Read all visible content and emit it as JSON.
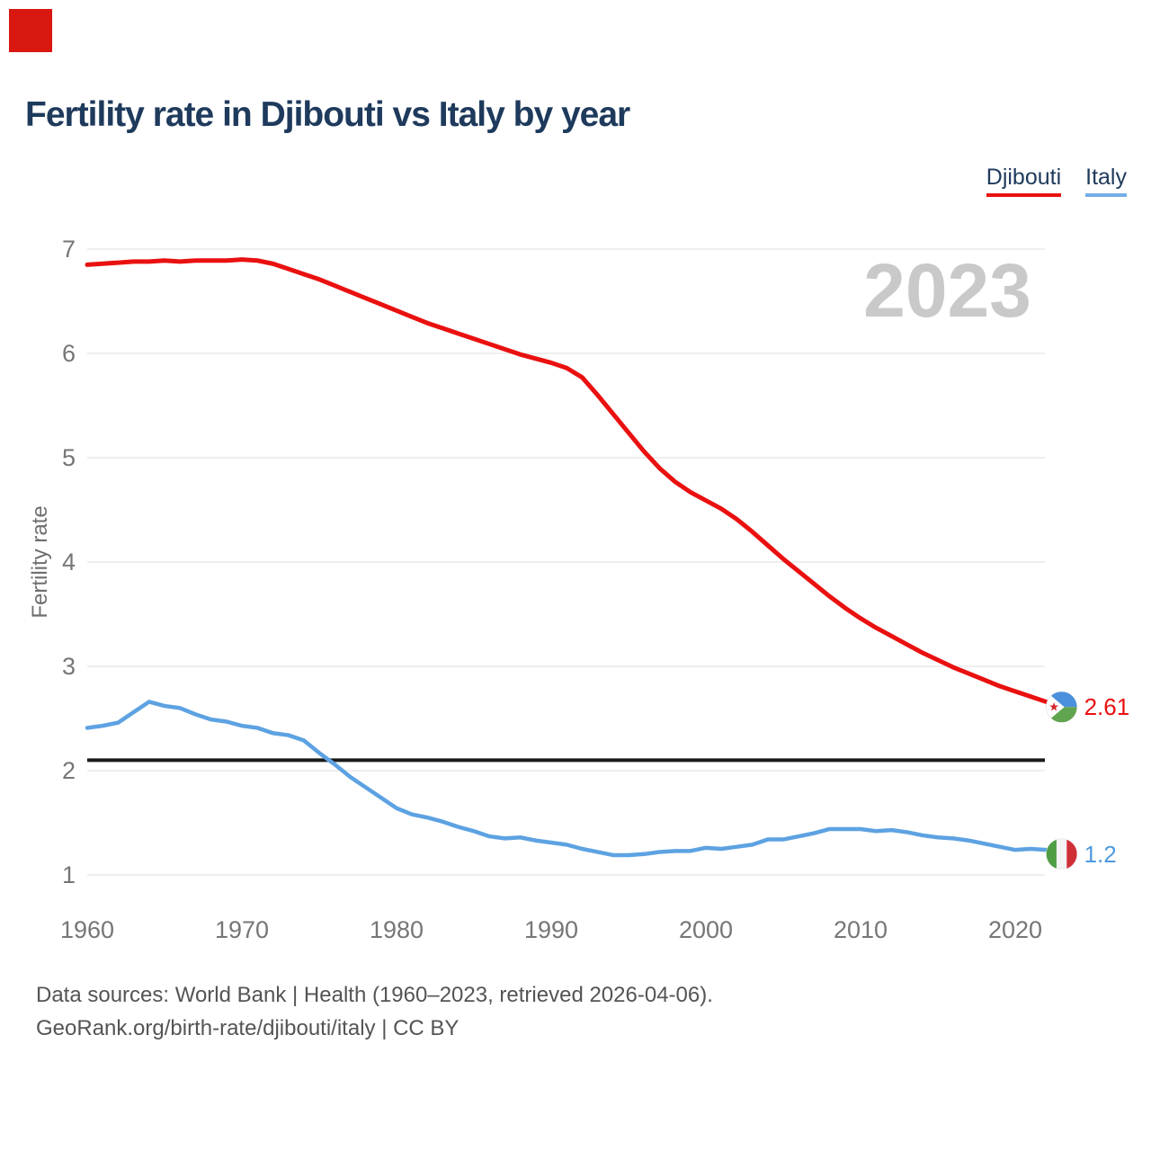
{
  "corner_marker": {
    "color": "#d81710"
  },
  "title": "Fertility rate in Djibouti vs Italy by year",
  "legend": [
    {
      "label": "Djibouti",
      "color": "#e91110"
    },
    {
      "label": "Italy",
      "color": "#74aee8"
    }
  ],
  "watermark": "2023",
  "axes": {
    "y_label": "Fertility rate",
    "y_ticks": [
      7,
      6,
      5,
      4,
      3,
      2,
      1
    ],
    "x_ticks": [
      1960,
      1970,
      1980,
      1990,
      2000,
      2010,
      2020
    ]
  },
  "reference_line": {
    "value": 2.1,
    "color": "#1a1a1a"
  },
  "end_labels": [
    {
      "series": "Djibouti",
      "value": "2.61",
      "color": "#e91110",
      "flag": "djibouti-flag-icon"
    },
    {
      "series": "Italy",
      "value": "1.2",
      "color": "#4f9ade",
      "flag": "italy-flag-icon"
    }
  ],
  "footer": {
    "line1": "Data sources: World Bank | Health (1960–2023, retrieved 2026-04-06).",
    "line2": "GeoRank.org/birth-rate/djibouti/italy | CC BY"
  },
  "chart_data": {
    "type": "line",
    "title": "Fertility rate in Djibouti vs Italy by year",
    "xlabel": "",
    "ylabel": "Fertility rate",
    "xlim": [
      1960,
      2023
    ],
    "ylim": [
      1,
      7
    ],
    "grid": "horizontal",
    "legend_position": "top-right",
    "annotations": {
      "watermark_year": "2023",
      "replacement_rate_line": 2.1
    },
    "x": [
      1960,
      1961,
      1962,
      1963,
      1964,
      1965,
      1966,
      1967,
      1968,
      1969,
      1970,
      1971,
      1972,
      1973,
      1974,
      1975,
      1976,
      1977,
      1978,
      1979,
      1980,
      1981,
      1982,
      1983,
      1984,
      1985,
      1986,
      1987,
      1988,
      1989,
      1990,
      1991,
      1992,
      1993,
      1994,
      1995,
      1996,
      1997,
      1998,
      1999,
      2000,
      2001,
      2002,
      2003,
      2004,
      2005,
      2006,
      2007,
      2008,
      2009,
      2010,
      2011,
      2012,
      2013,
      2014,
      2015,
      2016,
      2017,
      2018,
      2019,
      2020,
      2021,
      2022,
      2023
    ],
    "series": [
      {
        "name": "Djibouti",
        "color": "#e91110",
        "final_value": 2.61,
        "values": [
          6.85,
          6.86,
          6.87,
          6.88,
          6.88,
          6.89,
          6.88,
          6.89,
          6.89,
          6.89,
          6.9,
          6.89,
          6.86,
          6.81,
          6.76,
          6.71,
          6.65,
          6.59,
          6.53,
          6.47,
          6.41,
          6.35,
          6.29,
          6.24,
          6.19,
          6.14,
          6.09,
          6.04,
          5.99,
          5.95,
          5.91,
          5.86,
          5.77,
          5.6,
          5.42,
          5.24,
          5.06,
          4.9,
          4.77,
          4.67,
          4.59,
          4.51,
          4.41,
          4.29,
          4.16,
          4.03,
          3.91,
          3.79,
          3.67,
          3.56,
          3.46,
          3.37,
          3.29,
          3.21,
          3.13,
          3.06,
          2.99,
          2.93,
          2.87,
          2.81,
          2.76,
          2.71,
          2.66,
          2.61
        ]
      },
      {
        "name": "Italy",
        "color": "#5da2e2",
        "final_value": 1.2,
        "values": [
          2.41,
          2.43,
          2.46,
          2.56,
          2.66,
          2.62,
          2.6,
          2.54,
          2.49,
          2.47,
          2.43,
          2.41,
          2.36,
          2.34,
          2.29,
          2.17,
          2.06,
          1.94,
          1.84,
          1.74,
          1.64,
          1.58,
          1.55,
          1.51,
          1.46,
          1.42,
          1.37,
          1.35,
          1.36,
          1.33,
          1.31,
          1.29,
          1.25,
          1.22,
          1.19,
          1.19,
          1.2,
          1.22,
          1.23,
          1.23,
          1.26,
          1.25,
          1.27,
          1.29,
          1.34,
          1.34,
          1.37,
          1.4,
          1.44,
          1.44,
          1.44,
          1.42,
          1.43,
          1.41,
          1.38,
          1.36,
          1.35,
          1.33,
          1.3,
          1.27,
          1.24,
          1.25,
          1.24,
          1.2
        ]
      }
    ]
  }
}
